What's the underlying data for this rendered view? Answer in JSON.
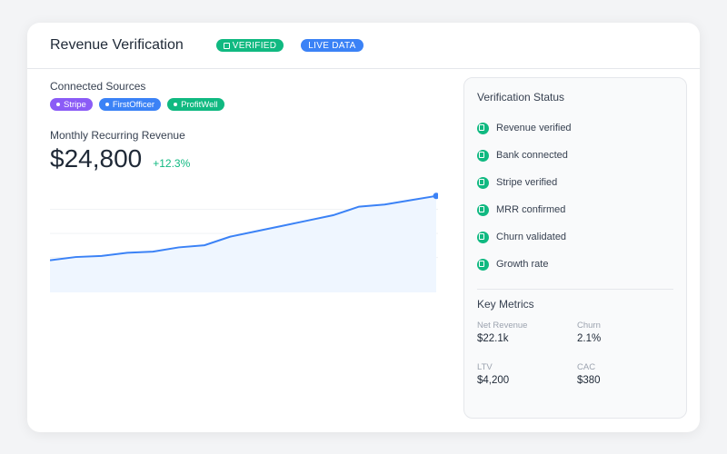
{
  "header": {
    "title": "Revenue Verification",
    "badges": [
      {
        "label": "VERIFIED",
        "icon": "checkbox-icon",
        "color": "#10b981"
      },
      {
        "label": "LIVE DATA",
        "color": "#3b82f6"
      }
    ]
  },
  "sources": {
    "label": "Connected Sources",
    "items": [
      {
        "label": "Stripe",
        "color": "#8b5cf6"
      },
      {
        "label": "FirstOfficer",
        "color": "#3b82f6"
      },
      {
        "label": "ProfitWell",
        "color": "#10b981"
      }
    ]
  },
  "mrr": {
    "label": "Monthly Recurring Revenue",
    "value": "$24,800",
    "change": "+12.3%",
    "change_color": "#10b981"
  },
  "chart_data": {
    "type": "area",
    "title": "",
    "xlabel": "",
    "ylabel": "",
    "values": [
      30,
      33,
      34,
      37,
      38,
      42,
      44,
      52,
      57,
      62,
      67,
      72,
      80,
      82,
      86,
      90
    ],
    "ylim": [
      0,
      100
    ],
    "grid": true,
    "line_color": "#3b82f6",
    "fill_color": "#eff6ff"
  },
  "verification": {
    "title": "Verification Status",
    "items": [
      {
        "label": "Revenue verified"
      },
      {
        "label": "Bank connected"
      },
      {
        "label": "Stripe verified"
      },
      {
        "label": "MRR confirmed"
      },
      {
        "label": "Churn validated"
      },
      {
        "label": "Growth rate"
      }
    ]
  },
  "metrics": {
    "title": "Key Metrics",
    "items": [
      {
        "label": "Net Revenue",
        "value": "$22.1k"
      },
      {
        "label": "Churn",
        "value": "2.1%"
      },
      {
        "label": "LTV",
        "value": "$4,200"
      },
      {
        "label": "CAC",
        "value": "$380"
      }
    ]
  }
}
